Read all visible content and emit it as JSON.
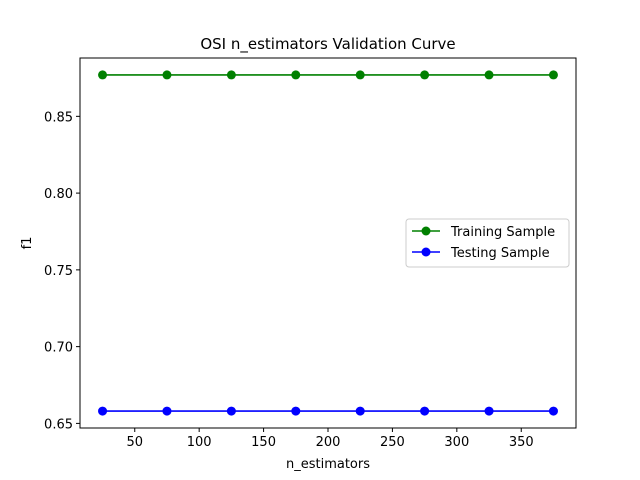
{
  "chart_data": {
    "type": "line",
    "title": "OSI n_estimators Validation Curve",
    "xlabel": "n_estimators",
    "ylabel": "f1",
    "x": [
      25,
      75,
      125,
      175,
      225,
      275,
      325,
      375
    ],
    "series": [
      {
        "name": "Training Sample",
        "color": "#008000",
        "marker": "circle",
        "values": [
          0.877,
          0.877,
          0.877,
          0.877,
          0.877,
          0.877,
          0.877,
          0.877
        ]
      },
      {
        "name": "Testing Sample",
        "color": "#0000ff",
        "marker": "circle",
        "values": [
          0.658,
          0.658,
          0.658,
          0.658,
          0.658,
          0.658,
          0.658,
          0.658
        ]
      }
    ],
    "xlim": [
      7.5,
      392.5
    ],
    "ylim": [
      0.647,
      0.888
    ],
    "xticks": [
      50,
      100,
      150,
      200,
      250,
      300,
      350
    ],
    "xtick_labels": [
      "50",
      "100",
      "150",
      "200",
      "250",
      "300",
      "350"
    ],
    "yticks": [
      0.65,
      0.7,
      0.75,
      0.8,
      0.85
    ],
    "ytick_labels": [
      "0.65",
      "0.70",
      "0.75",
      "0.80",
      "0.85"
    ],
    "grid": false,
    "legend": "center-right"
  }
}
